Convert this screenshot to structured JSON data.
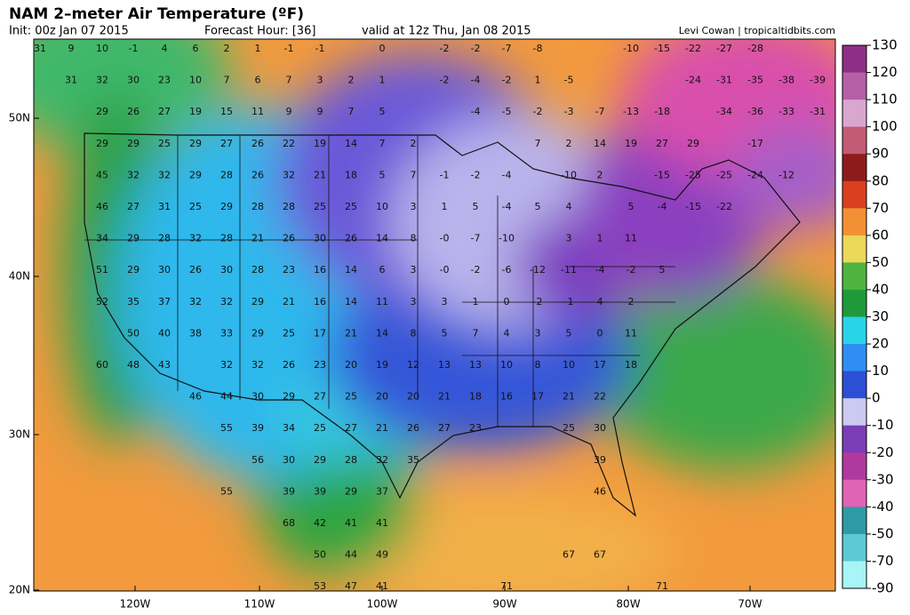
{
  "header": {
    "title": "NAM 2–meter Air Temperature (ºF)",
    "init": "Init: 00z Jan 07 2015",
    "forecast_hour": "Forecast Hour: [36]",
    "valid": "valid at 12z Thu, Jan 08 2015",
    "credit": "Levi Cowan | tropicaltidbits.com"
  },
  "map": {
    "lat_labels": [
      "50N",
      "40N",
      "30N",
      "20N"
    ],
    "lon_labels": [
      "120W",
      "110W",
      "100W",
      "90W",
      "80W",
      "70W"
    ],
    "point_values": [
      [
        31,
        9,
        10,
        -1,
        4,
        6,
        2,
        1,
        -1,
        -1,
        null,
        0,
        null,
        -2,
        -2,
        -7,
        -8,
        null,
        null,
        -10,
        -15,
        -22,
        -27,
        -28
      ],
      [
        null,
        31,
        32,
        30,
        23,
        10,
        7,
        6,
        7,
        3,
        2,
        1,
        null,
        -2,
        -4,
        -2,
        1,
        -5,
        null,
        null,
        null,
        -24,
        -31,
        -35,
        -38,
        -39
      ],
      [
        null,
        null,
        29,
        26,
        27,
        19,
        15,
        11,
        9,
        9,
        7,
        5,
        null,
        null,
        -4,
        -5,
        -2,
        -3,
        -7,
        -13,
        -18,
        null,
        -34,
        -36,
        -33,
        -31
      ],
      [
        null,
        null,
        29,
        29,
        25,
        29,
        27,
        26,
        22,
        19,
        14,
        7,
        2,
        null,
        null,
        null,
        7,
        2,
        14,
        19,
        27,
        29,
        null,
        -17
      ],
      [
        null,
        null,
        45,
        32,
        32,
        29,
        28,
        26,
        32,
        21,
        18,
        5,
        7,
        -1,
        -2,
        -4,
        null,
        -10,
        2,
        null,
        -15,
        -25,
        -25,
        -24,
        -12
      ],
      [
        null,
        null,
        46,
        27,
        31,
        25,
        29,
        28,
        28,
        25,
        25,
        10,
        3,
        1,
        5,
        -4,
        5,
        4,
        null,
        5,
        -4,
        -15,
        -22
      ],
      [
        null,
        null,
        34,
        29,
        28,
        32,
        28,
        21,
        26,
        30,
        26,
        14,
        8,
        "-0",
        -7,
        -10,
        null,
        3,
        1,
        11
      ],
      [
        null,
        null,
        51,
        29,
        30,
        26,
        30,
        28,
        23,
        16,
        14,
        6,
        3,
        "-0",
        -2,
        -6,
        -12,
        -11,
        -4,
        -2,
        5
      ],
      [
        null,
        null,
        52,
        35,
        37,
        32,
        32,
        29,
        21,
        16,
        14,
        11,
        3,
        3,
        1,
        0,
        -2,
        -1,
        4,
        2
      ],
      [
        null,
        null,
        null,
        50,
        40,
        38,
        33,
        29,
        25,
        17,
        21,
        14,
        8,
        5,
        7,
        4,
        3,
        5,
        0,
        11
      ],
      [
        null,
        null,
        60,
        48,
        43,
        null,
        32,
        32,
        26,
        23,
        20,
        19,
        12,
        13,
        13,
        10,
        8,
        10,
        17,
        18
      ],
      [
        null,
        null,
        null,
        null,
        null,
        46,
        44,
        30,
        29,
        27,
        25,
        20,
        20,
        21,
        18,
        16,
        17,
        21,
        22
      ],
      [
        null,
        null,
        null,
        null,
        null,
        null,
        55,
        39,
        34,
        25,
        27,
        21,
        26,
        27,
        23,
        null,
        null,
        25,
        30
      ],
      [
        null,
        null,
        null,
        null,
        null,
        null,
        null,
        56,
        30,
        29,
        28,
        32,
        35,
        null,
        null,
        null,
        null,
        null,
        39
      ],
      [
        null,
        null,
        null,
        null,
        null,
        null,
        55,
        null,
        39,
        39,
        29,
        37,
        null,
        null,
        null,
        null,
        null,
        null,
        46
      ],
      [
        null,
        null,
        null,
        null,
        null,
        null,
        null,
        null,
        68,
        42,
        41,
        41
      ],
      [
        null,
        null,
        null,
        null,
        null,
        null,
        null,
        null,
        null,
        50,
        44,
        49,
        null,
        null,
        null,
        null,
        null,
        67,
        67
      ],
      [
        null,
        null,
        null,
        null,
        null,
        null,
        null,
        null,
        null,
        53,
        47,
        41,
        null,
        null,
        null,
        71,
        null,
        null,
        null,
        null,
        71
      ]
    ]
  },
  "colorbar": {
    "ticks": [
      130,
      120,
      110,
      100,
      90,
      80,
      70,
      60,
      50,
      40,
      30,
      20,
      10,
      0,
      -10,
      -20,
      -30,
      -40,
      -50,
      -70,
      -90
    ],
    "colors": [
      "#8e2f86",
      "#b45fa6",
      "#d9a6d0",
      "#c25b73",
      "#8e1b1b",
      "#d8401e",
      "#f29033",
      "#ecd85a",
      "#4fb43f",
      "#1f9a3a",
      "#2ad4e8",
      "#2f8ef2",
      "#2c4fd8",
      "#cbcaf0",
      "#7b3cb8",
      "#b0399f",
      "#e063b5",
      "#2e9aa8",
      "#5cc9d6",
      "#a8f4f6"
    ]
  }
}
